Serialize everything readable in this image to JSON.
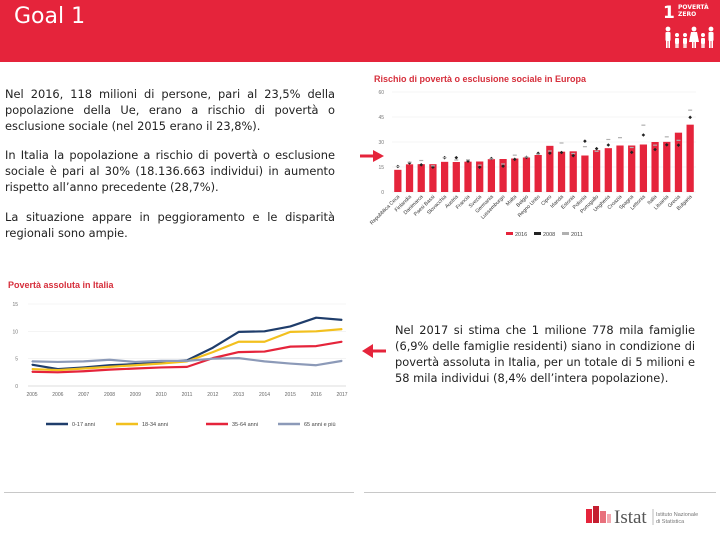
{
  "header": {
    "title": "Goal 1",
    "sdg_number": "1",
    "sdg_label": "POVERTÀ\nZERO",
    "color": "#e5243b"
  },
  "paragraphs": {
    "p1": "Nel 2016, 118 milioni di persone, pari al 23,5% della popolazione della Ue, erano a rischio di povertà o esclusione sociale (nel 2015 erano il 23,8%).",
    "p2": "In Italia la popolazione a rischio di povertà o esclusione sociale è pari al 30% (18.136.663 individui) in aumento rispetto all’anno precedente (28,7%).",
    "p3": "La situazione appare in peggioramento e le disparità regionali sono ampie.",
    "p4": "Nel 2017 si stima che 1 milione 778 mila famiglie (6,9% delle famiglie residenti) siano in condizione di povertà assoluta in Italia, per un totale di 5 milioni e 58 mila individui (8,4% dell’intera popolazione)."
  },
  "chart_data": [
    {
      "type": "bar",
      "title": "Rischio di povertà o esclusione sociale in Europa",
      "categories": [
        "Repubblica Ceca",
        "Finlandia",
        "Danimarca",
        "Paesi Bassi",
        "Slovacchia",
        "Austria",
        "Francia",
        "Svezia",
        "Germania",
        "Lussemburgo",
        "Malta",
        "Belgio",
        "Regno Unito",
        "Cipro",
        "Irlanda",
        "Estonia",
        "Polonia",
        "Portogallo",
        "Ungheria",
        "Croazia",
        "Spagna",
        "Lettonia",
        "Italia",
        "Lituania",
        "Grecia",
        "Bulgaria"
      ],
      "ylim": [
        0,
        60
      ],
      "yticks": [
        "0",
        "15",
        "30",
        "45",
        "60"
      ],
      "series": [
        {
          "name": "2016",
          "color": "#e5243b",
          "values": [
            13.3,
            16.6,
            16.7,
            16.7,
            18.1,
            18.0,
            18.2,
            18.3,
            19.7,
            19.8,
            20.1,
            20.7,
            22.2,
            27.7,
            24.2,
            24.4,
            21.9,
            25.1,
            26.3,
            27.9,
            27.9,
            28.5,
            30.0,
            30.1,
            35.6,
            40.4
          ]
        },
        {
          "name": "2008",
          "color": "#222222",
          "values": [
            15.3,
            17.4,
            16.3,
            14.9,
            20.6,
            20.6,
            18.5,
            14.9,
            20.1,
            15.5,
            19.6,
            20.8,
            23.2,
            23.3,
            23.7,
            21.8,
            30.5,
            26.0,
            28.2,
            null,
            23.8,
            34.2,
            25.5,
            28.3,
            28.1,
            44.8
          ]
        },
        {
          "name": "2011",
          "color": "#b0b0b0",
          "values": [
            15.3,
            17.9,
            18.9,
            15.7,
            20.6,
            19.2,
            19.3,
            16.1,
            19.9,
            16.8,
            22.1,
            21.0,
            22.7,
            24.6,
            29.4,
            23.1,
            27.2,
            24.4,
            31.5,
            32.6,
            26.7,
            40.1,
            28.1,
            33.1,
            31.0,
            49.1
          ]
        }
      ]
    },
    {
      "type": "line",
      "title": "Povertà assoluta in Italia",
      "categories": [
        "2005",
        "2006",
        "2007",
        "2008",
        "2009",
        "2010",
        "2011",
        "2012",
        "2013",
        "2014",
        "2015",
        "2016",
        "2017"
      ],
      "ylim": [
        0,
        15
      ],
      "yticks": [
        "0",
        "5",
        "10",
        "15"
      ],
      "series": [
        {
          "name": "0-17 anni",
          "color": "#1f3d6b",
          "values": [
            3.9,
            3.1,
            3.4,
            3.8,
            4.0,
            4.3,
            4.7,
            7.0,
            9.9,
            10.0,
            10.9,
            12.5,
            12.1
          ]
        },
        {
          "name": "18-34 anni",
          "color": "#f2c01e",
          "values": [
            3.1,
            2.9,
            3.2,
            3.5,
            3.8,
            4.1,
            4.5,
            6.2,
            8.1,
            8.1,
            9.9,
            10.0,
            10.4
          ]
        },
        {
          "name": "35-64 anni",
          "color": "#e5243b",
          "values": [
            2.6,
            2.5,
            2.7,
            3.0,
            3.2,
            3.4,
            3.5,
            5.1,
            6.2,
            6.3,
            7.2,
            7.3,
            8.1
          ]
        },
        {
          "name": "65 anni e più",
          "color": "#8c9ab8",
          "values": [
            4.5,
            4.4,
            4.5,
            4.8,
            4.4,
            4.6,
            4.6,
            5.0,
            5.1,
            4.5,
            4.1,
            3.8,
            4.6
          ]
        }
      ]
    }
  ],
  "logo": {
    "name": "Istat",
    "subtitle": "Istituto Nazionale\ndi Statistica"
  }
}
